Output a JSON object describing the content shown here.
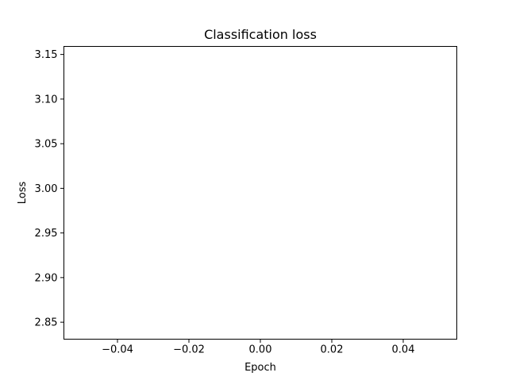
{
  "chart_data": {
    "type": "line",
    "title": "Classification loss",
    "xlabel": "Epoch",
    "ylabel": "Loss",
    "xlim": [
      -0.055,
      0.055
    ],
    "ylim": [
      2.831,
      3.159
    ],
    "xticks": [
      -0.04,
      -0.02,
      0.0,
      0.02,
      0.04
    ],
    "xtick_labels": [
      "−0.04",
      "−0.02",
      "0.00",
      "0.02",
      "0.04"
    ],
    "yticks": [
      2.85,
      2.9,
      2.95,
      3.0,
      3.05,
      3.1,
      3.15
    ],
    "ytick_labels": [
      "2.85",
      "2.90",
      "2.95",
      "3.00",
      "3.05",
      "3.10",
      "3.15"
    ],
    "series": [
      {
        "x": [],
        "y": []
      }
    ],
    "grid": false,
    "legend": "none"
  }
}
